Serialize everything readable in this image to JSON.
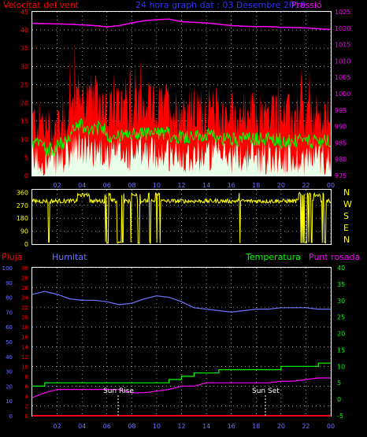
{
  "header": {
    "wind_label": "Velocitat del vent",
    "title": "24 hora graph dat : 03 Desembre 2018",
    "pressure_label": "Pressió"
  },
  "bottom_header": {
    "rain_label": "Pluja",
    "humidity_label": "Humitat",
    "temperature_label": "Temperatura",
    "dewpoint_label": "Punt rosada"
  },
  "annotations": {
    "sunrise": "Sun Rise",
    "sunset": "Sun Set"
  },
  "colors": {
    "wind_gust": "#ff0000",
    "wind_avg": "#00ff00",
    "wind_min": "#e8ffe8",
    "pressure": "#ff00ff",
    "direction": "#ffff00",
    "humidity": "#7070ff",
    "temperature": "#00ff00",
    "dewpoint": "#ff00ff",
    "rain": "#ff0000",
    "axis_left": "#ff0000",
    "axis_press": "#ff00ff",
    "axis_green": "#00ff00",
    "axis_hum": "#7070ff",
    "dir_labels": "#ffff00",
    "grid": "#ffffff",
    "frame": "#ffffff"
  },
  "chart_data": [
    {
      "type": "line",
      "id": "wind-pressure",
      "x_ticks": [
        "02",
        "04",
        "06",
        "08",
        "10",
        "12",
        "14",
        "16",
        "18",
        "20",
        "22",
        "00"
      ],
      "y_left_ticks": [
        "0",
        "5",
        "10",
        "15",
        "20",
        "25",
        "30",
        "35",
        "40",
        "45"
      ],
      "ylim_left": [
        0,
        45
      ],
      "y_right_ticks": [
        "975",
        "980",
        "985",
        "990",
        "995",
        "1000",
        "1005",
        "1010",
        "1015",
        "1020",
        "1025"
      ],
      "ylim_right": [
        975,
        1025
      ],
      "series": [
        {
          "role": "pressure",
          "x": [
            0,
            1,
            2,
            3,
            4,
            5,
            6,
            7,
            8,
            9,
            10,
            11,
            12,
            13,
            14,
            15,
            16,
            17,
            18,
            19,
            20,
            21,
            22,
            23,
            24
          ],
          "values": [
            1021.5,
            1021.4,
            1021.3,
            1021.2,
            1021.0,
            1020.8,
            1020.4,
            1020.8,
            1021.6,
            1022.3,
            1022.6,
            1022.8,
            1022.0,
            1021.8,
            1021.6,
            1021.2,
            1020.8,
            1020.6,
            1020.5,
            1020.5,
            1020.3,
            1020.2,
            1020.1,
            1019.8,
            1019.6
          ]
        }
      ]
    },
    {
      "type": "line",
      "id": "direction",
      "y_left_ticks": [
        "0",
        "90",
        "180",
        "270",
        "360"
      ],
      "ylim": [
        0,
        360
      ],
      "y_right_ticks": [
        "N",
        "W",
        "S",
        "E",
        "N"
      ],
      "series": []
    },
    {
      "type": "line",
      "id": "hum-temp",
      "x_ticks": [
        "02",
        "04",
        "06",
        "08",
        "10",
        "12",
        "14",
        "16",
        "18",
        "20",
        "22",
        "00"
      ],
      "y_hum_ticks": [
        "0",
        "10",
        "20",
        "30",
        "40",
        "50",
        "60",
        "70",
        "80",
        "90",
        "100"
      ],
      "y_rain_ticks": [
        "0",
        "2",
        "4",
        "6",
        "8",
        "10",
        "12",
        "14",
        "16",
        "18",
        "20",
        "22",
        "24",
        "26",
        "28",
        "30"
      ],
      "ylim_rain": [
        0,
        30
      ],
      "y_right_ticks": [
        "-5",
        "0",
        "5",
        "10",
        "15",
        "20",
        "25",
        "30",
        "35",
        "40"
      ],
      "ylim_right": [
        -5,
        40
      ],
      "series": [
        {
          "role": "humidity",
          "x": [
            0,
            1,
            1.5,
            2,
            3,
            4,
            5,
            6,
            7,
            8,
            9,
            10,
            11,
            12,
            13,
            14,
            15,
            16,
            17,
            18,
            19,
            20,
            21,
            22,
            23,
            24
          ],
          "values": [
            82,
            84,
            83,
            82,
            79,
            78,
            78,
            77,
            75,
            76,
            79,
            81,
            80,
            77,
            73,
            72,
            71,
            70,
            71,
            72,
            72,
            73,
            73,
            73,
            72,
            72
          ]
        },
        {
          "role": "temperature",
          "x": [
            0,
            0.5,
            1,
            2,
            3,
            4,
            5,
            6,
            7,
            8,
            9,
            10,
            11,
            12,
            13,
            14,
            15,
            16,
            17,
            18,
            19,
            20,
            21,
            22,
            23,
            24
          ],
          "values": [
            4,
            4,
            5,
            5,
            5,
            5,
            5,
            5,
            5,
            5,
            5,
            5,
            6,
            7,
            8,
            8,
            9,
            9,
            9,
            9,
            9,
            10,
            10,
            10,
            11,
            11
          ]
        },
        {
          "role": "dewpoint",
          "x": [
            0,
            1,
            2,
            3,
            4,
            5,
            6,
            7,
            8,
            9,
            10,
            11,
            12,
            13,
            14,
            15,
            16,
            17,
            18,
            19,
            20,
            21,
            22,
            23,
            24
          ],
          "values": [
            0.5,
            2,
            3,
            3,
            3,
            3,
            3,
            3,
            2,
            2,
            2.5,
            3,
            4,
            4,
            5,
            5,
            5,
            5,
            5,
            5,
            5.5,
            5.5,
            6,
            6.5,
            6.5
          ]
        },
        {
          "role": "rain",
          "x": [
            0,
            24
          ],
          "values": [
            0,
            0
          ]
        }
      ]
    }
  ]
}
